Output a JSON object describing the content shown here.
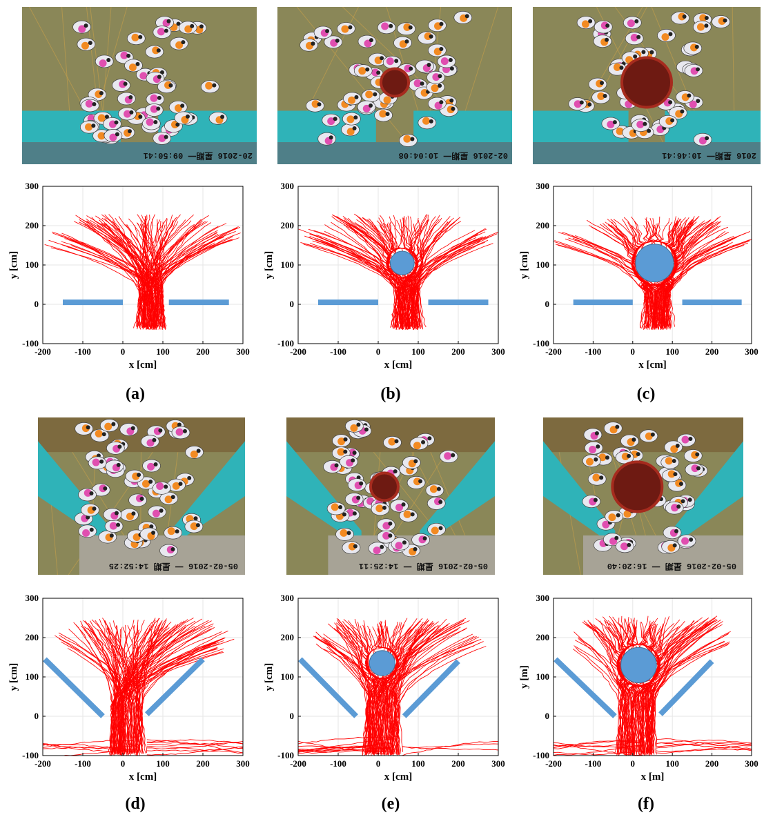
{
  "photos": [
    {
      "id": "a",
      "timestamp": "20-2016 星期一 09:50:41",
      "layout": "straight",
      "obstacle": "none"
    },
    {
      "id": "b",
      "timestamp": "02-2016 星期一 10:04:08",
      "layout": "straight",
      "obstacle": "small"
    },
    {
      "id": "c",
      "timestamp": "2016 星期一 10:46:41",
      "layout": "straight",
      "obstacle": "large"
    },
    {
      "id": "d",
      "timestamp": "05-02-2016 一 星期 14:52:25",
      "layout": "angled",
      "obstacle": "none"
    },
    {
      "id": "e",
      "timestamp": "05-02-2016 星期 一 14:25:11",
      "layout": "angled",
      "obstacle": "small"
    },
    {
      "id": "f",
      "timestamp": "05-02-2016 星期 一 16:20:40",
      "layout": "angled",
      "obstacle": "large"
    }
  ],
  "chart_data": [
    {
      "id": "a",
      "type": "line",
      "panel_label": "(a)",
      "xlabel": "x [cm]",
      "ylabel": "y [cm]",
      "xlim": [
        -200,
        300
      ],
      "ylim": [
        -100,
        300
      ],
      "xticks": [
        -200,
        -100,
        0,
        100,
        200,
        300
      ],
      "yticks": [
        -100,
        0,
        100,
        200,
        300
      ],
      "grid": true,
      "walls": [
        [
          [
            -150,
            5
          ],
          [
            0,
            5
          ]
        ],
        [
          [
            115,
            5
          ],
          [
            265,
            5
          ]
        ]
      ],
      "obstacle": null,
      "bottleneck": [
        40,
        100
      ],
      "spread": [
        -200,
        300
      ],
      "top_y": 230,
      "bottom_y": -65,
      "split": false,
      "side_flows": false,
      "seed": 11
    },
    {
      "id": "b",
      "type": "line",
      "panel_label": "(b)",
      "xlabel": "x [cm]",
      "ylabel": "y [cm]",
      "xlim": [
        -200,
        300
      ],
      "ylim": [
        -100,
        300
      ],
      "xticks": [
        -200,
        -100,
        0,
        100,
        200,
        300
      ],
      "yticks": [
        -100,
        0,
        100,
        200,
        300
      ],
      "grid": true,
      "walls": [
        [
          [
            -150,
            5
          ],
          [
            0,
            5
          ]
        ],
        [
          [
            125,
            5
          ],
          [
            275,
            5
          ]
        ]
      ],
      "obstacle": {
        "cx": 60,
        "cy": 105,
        "r": 30
      },
      "bottleneck": [
        40,
        105
      ],
      "spread": [
        -200,
        300
      ],
      "top_y": 230,
      "bottom_y": -65,
      "split": true,
      "side_flows": false,
      "seed": 23
    },
    {
      "id": "c",
      "type": "line",
      "panel_label": "(c)",
      "xlabel": "x [cm]",
      "ylabel": "y [cm]",
      "xlim": [
        -200,
        300
      ],
      "ylim": [
        -100,
        300
      ],
      "xticks": [
        -200,
        -100,
        0,
        100,
        200,
        300
      ],
      "yticks": [
        -100,
        0,
        100,
        200,
        300
      ],
      "grid": true,
      "walls": [
        [
          [
            -150,
            5
          ],
          [
            0,
            5
          ]
        ],
        [
          [
            125,
            5
          ],
          [
            275,
            5
          ]
        ]
      ],
      "obstacle": {
        "cx": 55,
        "cy": 105,
        "r": 48
      },
      "bottleneck": [
        30,
        95
      ],
      "spread": [
        -200,
        300
      ],
      "top_y": 225,
      "bottom_y": -65,
      "split": true,
      "side_flows": false,
      "seed": 37
    },
    {
      "id": "d",
      "type": "line",
      "panel_label": "(d)",
      "xlabel": "x [cm]",
      "ylabel": "y [cm]",
      "xlim": [
        -200,
        300
      ],
      "ylim": [
        -100,
        300
      ],
      "xticks": [
        -200,
        -100,
        0,
        100,
        200,
        300
      ],
      "yticks": [
        -100,
        0,
        100,
        200,
        300
      ],
      "grid": true,
      "walls": [
        [
          [
            -195,
            145
          ],
          [
            -50,
            0
          ]
        ],
        [
          [
            200,
            145
          ],
          [
            60,
            5
          ]
        ]
      ],
      "obstacle": null,
      "bottleneck": [
        -30,
        50
      ],
      "spread": [
        -170,
        280
      ],
      "top_y": 250,
      "bottom_y": -100,
      "split": false,
      "side_flows": true,
      "seed": 41
    },
    {
      "id": "e",
      "type": "line",
      "panel_label": "(e)",
      "xlabel": "x [cm]",
      "ylabel": "y [cm]",
      "xlim": [
        -200,
        300
      ],
      "ylim": [
        -100,
        300
      ],
      "xticks": [
        -200,
        -100,
        0,
        100,
        200,
        300
      ],
      "yticks": [
        -100,
        0,
        100,
        200,
        300
      ],
      "grid": true,
      "walls": [
        [
          [
            -195,
            145
          ],
          [
            -55,
            0
          ]
        ],
        [
          [
            200,
            140
          ],
          [
            65,
            0
          ]
        ]
      ],
      "obstacle": {
        "cx": 10,
        "cy": 135,
        "r": 32
      },
      "bottleneck": [
        -30,
        55
      ],
      "spread": [
        -170,
        270
      ],
      "top_y": 250,
      "bottom_y": -100,
      "split": true,
      "side_flows": true,
      "seed": 53
    },
    {
      "id": "f",
      "type": "line",
      "panel_label": "(f)",
      "xlabel": "x [m]",
      "ylabel": "y [m]",
      "xlim": [
        -200,
        300
      ],
      "ylim": [
        -100,
        300
      ],
      "xticks": [
        -200,
        -100,
        0,
        100,
        200,
        300
      ],
      "yticks": [
        -100,
        0,
        100,
        200,
        300
      ],
      "grid": true,
      "walls": [
        [
          [
            -195,
            145
          ],
          [
            -45,
            0
          ]
        ],
        [
          [
            200,
            140
          ],
          [
            70,
            5
          ]
        ]
      ],
      "obstacle": {
        "cx": 15,
        "cy": 130,
        "r": 45
      },
      "bottleneck": [
        -35,
        55
      ],
      "spread": [
        -160,
        250
      ],
      "top_y": 255,
      "bottom_y": -100,
      "split": true,
      "side_flows": true,
      "seed": 67
    }
  ],
  "colors": {
    "trajectory": "#ff0000",
    "wall": "#5b9bd5",
    "obstacle": "#5b9bd5",
    "grid": "#e6e6e6",
    "floor": "#8a8758",
    "platform": "#2fb3b8"
  }
}
